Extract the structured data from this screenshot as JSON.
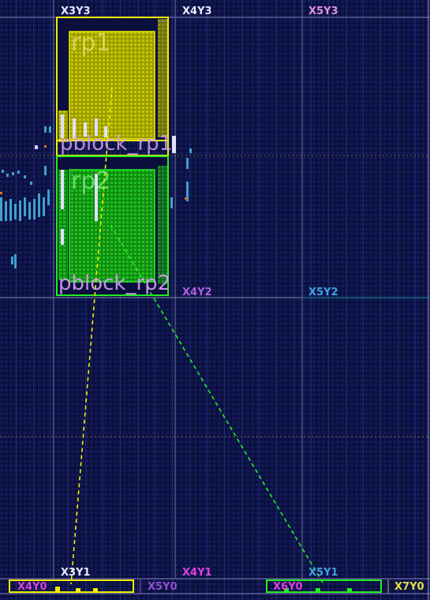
{
  "clock_regions": {
    "top": [
      "X3Y3",
      "X4Y3",
      "X5Y3"
    ],
    "mid": [
      "X4Y2",
      "X5Y2"
    ],
    "bottom": [
      "X3Y1",
      "X4Y1",
      "X5Y1"
    ]
  },
  "bottom_row": [
    "X4Y0",
    "X5Y0",
    "X6Y0",
    "X7Y0"
  ],
  "pblocks": [
    {
      "name": "pblock_rp1",
      "label": "pblock_rp1",
      "rp": "rp1",
      "color": "#f0f000"
    },
    {
      "name": "pblock_rp2",
      "label": "pblock_rp2",
      "rp": "rp2",
      "color": "#22ee22"
    }
  ],
  "colors": {
    "background": "#0b0f3d",
    "label_white": "#e8e8ff",
    "label_magenta": "#e040e0",
    "label_cyan": "#40a0e0",
    "pblock_text": "#d8a0f0",
    "yellow": "#f0f000",
    "green": "#22ee22"
  }
}
